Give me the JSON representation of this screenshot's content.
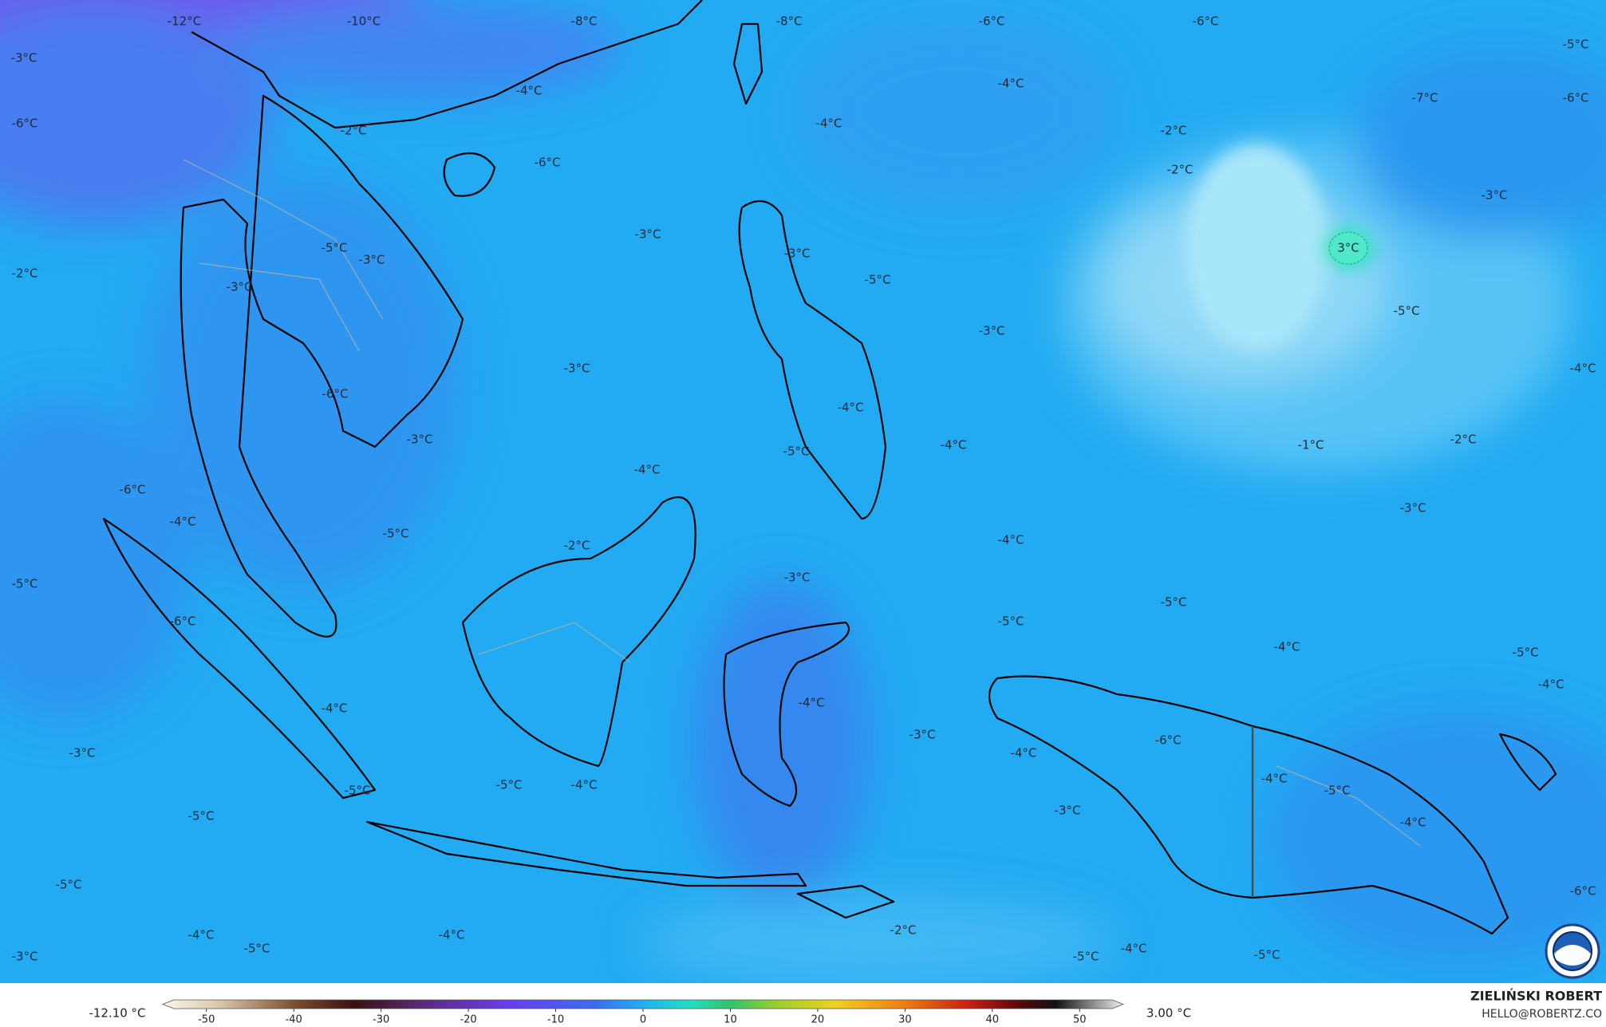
{
  "map": {
    "contour_labels": [
      "-12°C",
      "-10°C",
      "-8°C",
      "-8°C",
      "-6°C",
      "-6°C",
      "-5°C",
      "-3°C",
      "-4°C",
      "-4°C",
      "-7°C",
      "-6°C",
      "-6°C",
      "-2°C",
      "-4°C",
      "-2°C",
      "-6°C",
      "-2°C",
      "-3°C",
      "-3°C",
      "3°C",
      "-3°C",
      "-5°C",
      "-3°C",
      "-2°C",
      "-5°C",
      "-3°C",
      "-5°C",
      "-3°C",
      "-4°C",
      "-3°C",
      "-6°C",
      "-4°C",
      "-3°C",
      "-5°C",
      "-4°C",
      "-1°C",
      "-2°C",
      "-4°C",
      "-6°C",
      "-3°C",
      "-4°C",
      "-5°C",
      "-2°C",
      "-4°C",
      "-3°C",
      "-5°C",
      "-5°C",
      "-6°C",
      "-5°C",
      "-4°C",
      "-5°C",
      "-4°C",
      "-4°C",
      "-4°C",
      "-3°C",
      "-6°C",
      "-3°C",
      "-4°C",
      "-5°C",
      "-4°C",
      "-5°C",
      "-4°C",
      "-5°C",
      "-5°C",
      "-3°C",
      "-4°C",
      "-5°C",
      "-6°C",
      "-2°C",
      "-4°C",
      "-4°C",
      "-5°C",
      "-3°C",
      "-5°C",
      "-4°C",
      "-5°C"
    ],
    "colorbar": {
      "min_label": "-12.10 °C",
      "max_label": "3.00 °C",
      "range": [
        -55,
        55
      ],
      "ticks": [
        -50,
        -40,
        -30,
        -20,
        -10,
        0,
        10,
        20,
        30,
        40,
        50
      ]
    },
    "credit": {
      "author": "ZIELIŃSKI ROBERT",
      "email": "HELLO@ROBERTZ.CO"
    }
  }
}
